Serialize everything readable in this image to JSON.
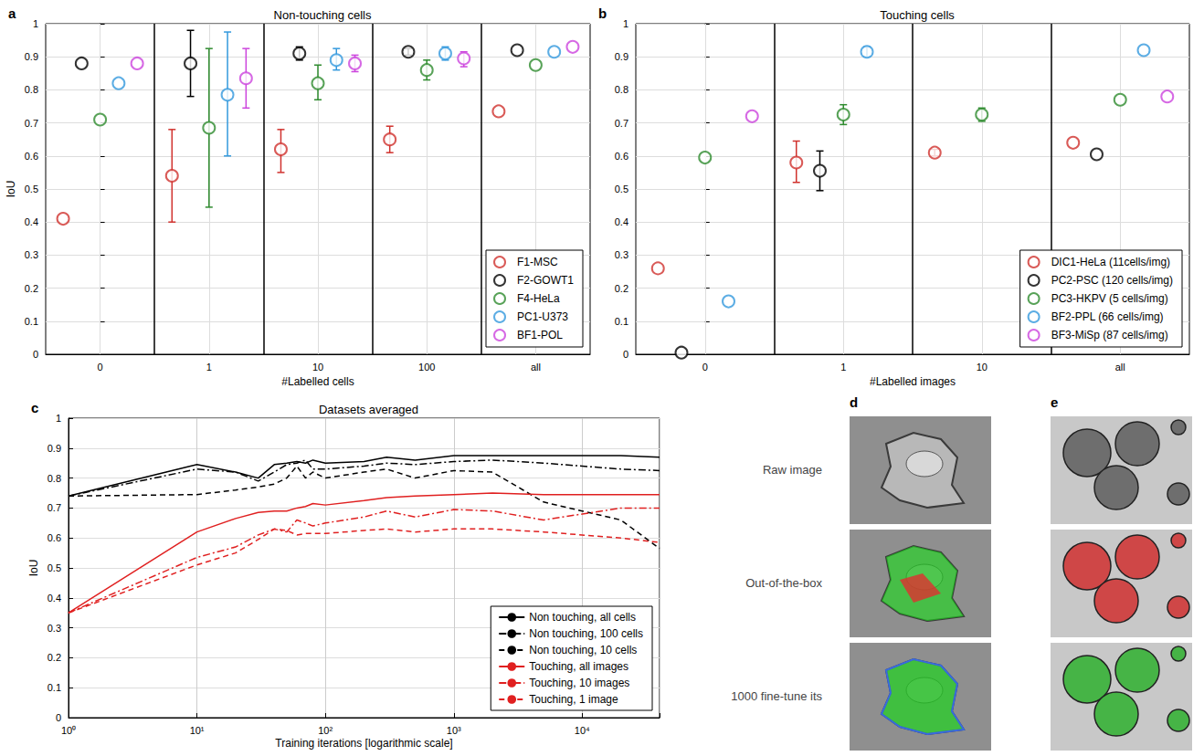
{
  "chart_data": [
    {
      "panel_label": "a",
      "type": "scatter",
      "title": "Non-touching cells",
      "x_label": "#Labelled cells",
      "y_label": "IoU",
      "categories": [
        "0",
        "1",
        "10",
        "100",
        "all"
      ],
      "ylim": [
        0,
        1
      ],
      "yticks": [
        0,
        0.1,
        0.2,
        0.3,
        0.4,
        0.5,
        0.6,
        0.7,
        0.8,
        0.9,
        1
      ],
      "grid": true,
      "legend": "lower right",
      "marker": "open_circle",
      "series": [
        {
          "name": "F1-MSC",
          "color": "#d0312d",
          "values": [
            0.41,
            0.54,
            0.62,
            0.65,
            0.735
          ],
          "error": [
            null,
            [
              0.4,
              0.68
            ],
            [
              0.55,
              0.68
            ],
            [
              0.61,
              0.69
            ],
            null
          ]
        },
        {
          "name": "F2-GOWT1",
          "color": "#000000",
          "values": [
            0.88,
            0.88,
            0.91,
            0.915,
            0.92
          ],
          "error": [
            null,
            [
              0.78,
              0.98
            ],
            [
              0.89,
              0.93
            ],
            [
              0.905,
              0.925
            ],
            null
          ]
        },
        {
          "name": "F4-HeLa",
          "color": "#2e8b2e",
          "values": [
            0.71,
            0.685,
            0.82,
            0.86,
            0.875
          ],
          "error": [
            null,
            [
              0.445,
              0.925
            ],
            [
              0.77,
              0.875
            ],
            [
              0.83,
              0.89
            ],
            null
          ]
        },
        {
          "name": "PC1-U373",
          "color": "#3399dd",
          "values": [
            0.82,
            0.785,
            0.89,
            0.91,
            0.915
          ],
          "error": [
            null,
            [
              0.6,
              0.975
            ],
            [
              0.86,
              0.925
            ],
            [
              0.89,
              0.93
            ],
            null
          ]
        },
        {
          "name": "BF1-POL",
          "color": "#cc44dd",
          "values": [
            0.88,
            0.835,
            0.88,
            0.895,
            0.93
          ],
          "error": [
            null,
            [
              0.745,
              0.925
            ],
            [
              0.855,
              0.905
            ],
            [
              0.87,
              0.915
            ],
            null
          ]
        }
      ]
    },
    {
      "panel_label": "b",
      "type": "scatter",
      "title": "Touching cells",
      "x_label": "#Labelled images",
      "categories": [
        "0",
        "1",
        "10",
        "all"
      ],
      "ylim": [
        0,
        1
      ],
      "yticks": [
        0,
        0.1,
        0.2,
        0.3,
        0.4,
        0.5,
        0.6,
        0.7,
        0.8,
        0.9,
        1
      ],
      "grid": true,
      "legend": "lower right",
      "marker": "open_circle",
      "series": [
        {
          "name": "DIC1-HeLa (11cells/img)",
          "color": "#d0312d",
          "values": [
            0.26,
            0.58,
            0.61,
            0.64
          ],
          "error": [
            null,
            [
              0.52,
              0.645
            ],
            [
              0.6,
              0.62
            ],
            null
          ]
        },
        {
          "name": "PC2-PSC (120 cells/img)",
          "color": "#000000",
          "values": [
            0.005,
            0.555,
            null,
            0.605
          ],
          "error": [
            null,
            [
              0.495,
              0.615
            ],
            null,
            null
          ]
        },
        {
          "name": "PC3-HKPV (5 cells/img)",
          "color": "#2e8b2e",
          "values": [
            0.595,
            0.725,
            0.725,
            0.77
          ],
          "error": [
            null,
            [
              0.695,
              0.755
            ],
            [
              0.705,
              0.745
            ],
            null
          ]
        },
        {
          "name": "BF2-PPL (66 cells/img)",
          "color": "#3399dd",
          "values": [
            0.16,
            0.915,
            null,
            0.92
          ],
          "error": [
            null,
            [
              0.9,
              0.93
            ],
            null,
            null
          ]
        },
        {
          "name": "BF3-MiSp (87 cells/img)",
          "color": "#cc44dd",
          "values": [
            0.72,
            null,
            null,
            0.78
          ],
          "error": [
            null,
            null,
            null,
            null
          ]
        }
      ]
    },
    {
      "panel_label": "c",
      "type": "line",
      "title": "Datasets averaged",
      "x_label": "Training iterations [logarithmic scale]",
      "y_label": "IoU",
      "log": "x",
      "x": [
        1,
        10,
        20,
        30,
        40,
        50,
        60,
        70,
        80,
        100,
        200,
        300,
        500,
        1000,
        2000,
        5000,
        10000,
        20000,
        40000
      ],
      "xlim": [
        1,
        40000
      ],
      "xticks": [
        {
          "value": 1,
          "label": "10⁰"
        },
        {
          "value": 10,
          "label": "10¹"
        },
        {
          "value": 100,
          "label": "10²"
        },
        {
          "value": 1000,
          "label": "10³"
        },
        {
          "value": 10000,
          "label": "10⁴"
        }
      ],
      "ylim": [
        0,
        1
      ],
      "yticks": [
        0,
        0.1,
        0.2,
        0.3,
        0.4,
        0.5,
        0.6,
        0.7,
        0.8,
        0.9,
        1
      ],
      "grid": true,
      "legend": "lower right",
      "series": [
        {
          "name": "Non touching, all cells",
          "color": "#000000",
          "line_style": "solid",
          "values": [
            0.74,
            0.845,
            0.82,
            0.8,
            0.845,
            0.85,
            0.855,
            0.85,
            0.86,
            0.85,
            0.855,
            0.87,
            0.86,
            0.875,
            0.875,
            0.875,
            0.875,
            0.875,
            0.87
          ]
        },
        {
          "name": "Non touching, 100 cells",
          "color": "#000000",
          "line_style": "dashdot",
          "values": [
            0.74,
            0.83,
            0.82,
            0.79,
            0.82,
            0.845,
            0.85,
            0.86,
            0.83,
            0.83,
            0.84,
            0.85,
            0.845,
            0.855,
            0.86,
            0.85,
            0.84,
            0.83,
            0.825
          ]
        },
        {
          "name": "Non touching, 10 cells",
          "color": "#000000",
          "line_style": "dashed",
          "values": [
            0.74,
            0.745,
            0.76,
            0.77,
            0.78,
            0.8,
            0.84,
            0.8,
            0.82,
            0.8,
            0.82,
            0.83,
            0.8,
            0.825,
            0.82,
            0.72,
            0.69,
            0.66,
            0.565
          ]
        },
        {
          "name": "Touching, all images",
          "color": "#e02020",
          "line_style": "solid",
          "values": [
            0.35,
            0.62,
            0.665,
            0.685,
            0.69,
            0.69,
            0.7,
            0.705,
            0.715,
            0.71,
            0.725,
            0.735,
            0.74,
            0.745,
            0.75,
            0.745,
            0.745,
            0.745,
            0.745
          ]
        },
        {
          "name": "Touching, 10 images",
          "color": "#e02020",
          "line_style": "dashdot",
          "values": [
            0.35,
            0.535,
            0.57,
            0.61,
            0.63,
            0.62,
            0.66,
            0.65,
            0.64,
            0.65,
            0.67,
            0.69,
            0.67,
            0.695,
            0.69,
            0.66,
            0.68,
            0.7,
            0.7
          ]
        },
        {
          "name": "Touching, 1 image",
          "color": "#e02020",
          "line_style": "dashed",
          "values": [
            0.35,
            0.51,
            0.55,
            0.595,
            0.63,
            0.625,
            0.61,
            0.615,
            0.615,
            0.615,
            0.625,
            0.63,
            0.62,
            0.63,
            0.63,
            0.62,
            0.61,
            0.6,
            0.585
          ]
        }
      ]
    }
  ],
  "image_panels": {
    "panels": [
      {
        "panel_label": "d"
      },
      {
        "panel_label": "e"
      }
    ],
    "row_labels": [
      "Raw image",
      "Out-of-the-box",
      "1000 fine-tune its"
    ]
  }
}
